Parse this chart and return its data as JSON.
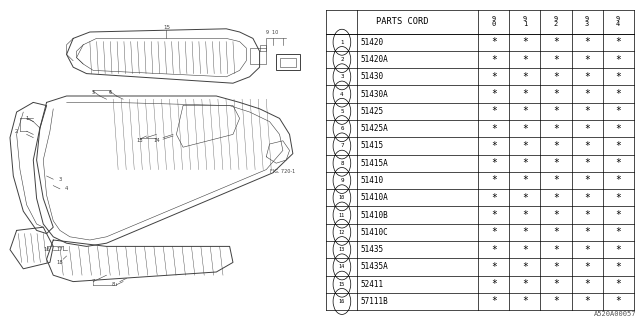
{
  "title": "PARTS CORD",
  "columns": [
    "90",
    "91",
    "92",
    "93",
    "94"
  ],
  "rows": [
    {
      "num": 1,
      "code": "51420"
    },
    {
      "num": 2,
      "code": "51420A"
    },
    {
      "num": 3,
      "code": "51430"
    },
    {
      "num": 4,
      "code": "51430A"
    },
    {
      "num": 5,
      "code": "51425"
    },
    {
      "num": 6,
      "code": "51425A"
    },
    {
      "num": 7,
      "code": "51415"
    },
    {
      "num": 8,
      "code": "51415A"
    },
    {
      "num": 9,
      "code": "51410"
    },
    {
      "num": 10,
      "code": "51410A"
    },
    {
      "num": 11,
      "code": "51410B"
    },
    {
      "num": 12,
      "code": "51410C"
    },
    {
      "num": 13,
      "code": "51435"
    },
    {
      "num": 14,
      "code": "51435A"
    },
    {
      "num": 15,
      "code": "52411"
    },
    {
      "num": 16,
      "code": "57111B"
    }
  ],
  "star_symbol": "*",
  "bg_color": "#ffffff",
  "text_color": "#000000",
  "line_color": "#404040",
  "font_size": 5.5,
  "header_font_size": 6.5,
  "watermark": "A520A00057",
  "diagram_label": "FIG. 720-1",
  "fig_width": 6.4,
  "fig_height": 3.2,
  "dpi": 100
}
